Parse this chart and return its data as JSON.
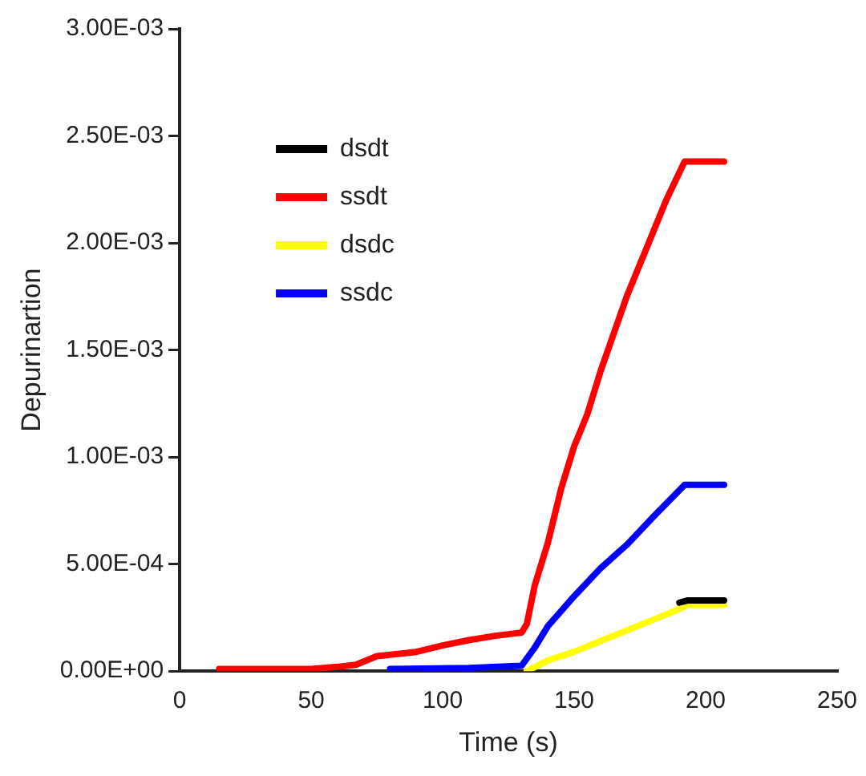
{
  "chart_data": {
    "type": "line",
    "xlabel": "Time (s)",
    "ylabel": "Depurinartion",
    "xlim": [
      0,
      250
    ],
    "xticks": [
      0,
      50,
      100,
      150,
      200,
      250
    ],
    "ylim": [
      0,
      0.003
    ],
    "yticks": [
      {
        "value": 0,
        "label": "0.00E+00"
      },
      {
        "value": 0.0005,
        "label": "5.00E-04"
      },
      {
        "value": 0.001,
        "label": "1.00E-03"
      },
      {
        "value": 0.0015,
        "label": "1.50E-03"
      },
      {
        "value": 0.002,
        "label": "2.00E-03"
      },
      {
        "value": 0.0025,
        "label": "2.50E-03"
      },
      {
        "value": 0.003,
        "label": "3.00E-03"
      }
    ],
    "grid": false,
    "legend": "top left",
    "marker": "none",
    "line_style": "solid",
    "series": [
      {
        "name": "dsdt",
        "color": "#000000",
        "x": [
          190,
          193,
          207
        ],
        "values": [
          0.00032,
          0.00033,
          0.00033
        ]
      },
      {
        "name": "ssdt",
        "color": "#ff0000",
        "x": [
          15,
          50,
          60,
          67,
          75,
          90,
          100,
          110,
          120,
          130,
          132,
          135,
          140,
          145,
          150,
          155,
          160,
          170,
          180,
          185,
          192,
          207
        ],
        "values": [
          1e-05,
          1e-05,
          2e-05,
          3e-05,
          7e-05,
          9e-05,
          0.00012,
          0.000145,
          0.000165,
          0.00018,
          0.00022,
          0.0004,
          0.0006,
          0.00085,
          0.00105,
          0.0012,
          0.0014,
          0.00175,
          0.00205,
          0.0022,
          0.00238,
          0.00238
        ]
      },
      {
        "name": "dsdc",
        "color": "#ffff00",
        "x": [
          132,
          140,
          150,
          160,
          170,
          180,
          190,
          193,
          207
        ],
        "values": [
          0,
          5e-05,
          9e-05,
          0.00014,
          0.00019,
          0.00024,
          0.00029,
          0.00031,
          0.00031
        ]
      },
      {
        "name": "ssdc",
        "color": "#0000ff",
        "x": [
          80,
          110,
          130,
          135,
          140,
          150,
          160,
          170,
          180,
          192,
          207
        ],
        "values": [
          1e-05,
          1.5e-05,
          2.5e-05,
          0.00011,
          0.00021,
          0.00035,
          0.00048,
          0.00059,
          0.00072,
          0.00087,
          0.00087
        ]
      }
    ]
  }
}
